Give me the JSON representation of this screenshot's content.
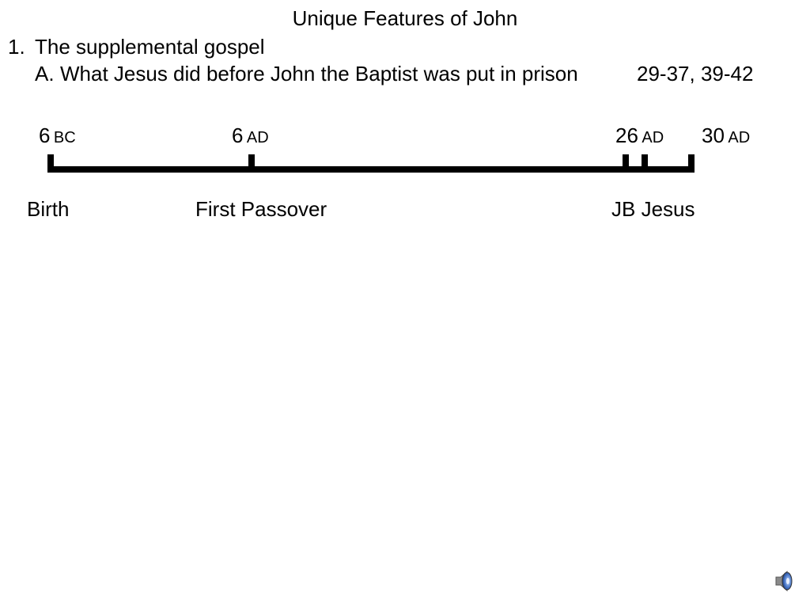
{
  "slide": {
    "title": "Unique Features of John",
    "outline": {
      "item1_num": "1.",
      "item1_text": "The supplemental gospel",
      "itemA_letter": "A.",
      "itemA_text": "What Jesus did before John the Baptist was put in prison",
      "itemA_ref": "29-37, 39-42"
    }
  },
  "timeline": {
    "dates": [
      {
        "num": "6",
        "era": "BC"
      },
      {
        "num": "6",
        "era": "AD"
      },
      {
        "num": "26",
        "era": "AD"
      },
      {
        "num": "30",
        "era": "AD"
      }
    ],
    "events": [
      "Birth",
      "First Passover",
      "JB Jesus"
    ]
  },
  "media": {
    "icon": "speaker-icon",
    "color": "#4a78c8"
  }
}
